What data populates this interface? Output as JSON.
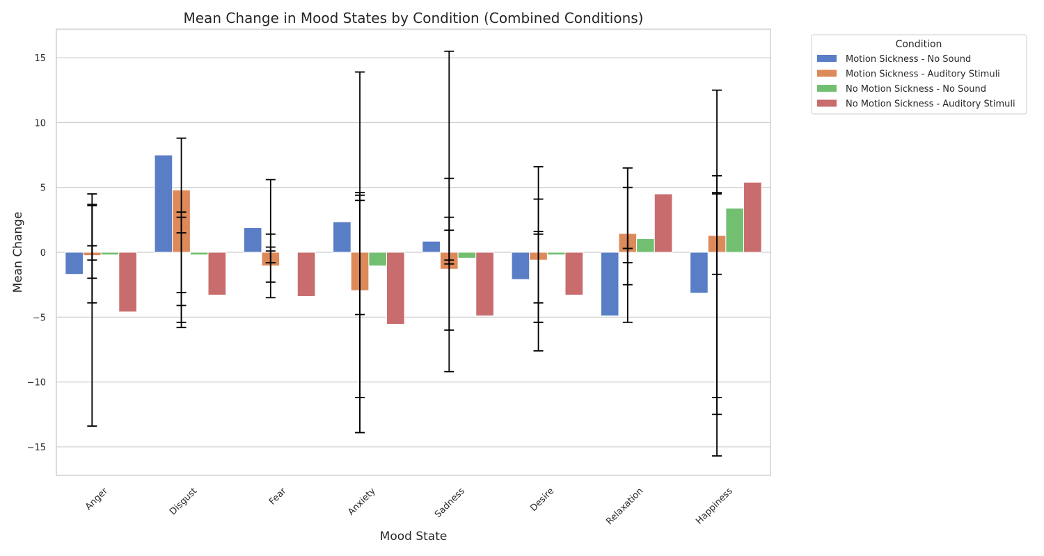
{
  "chart_data": {
    "type": "bar",
    "title": "Mean Change in Mood States by Condition (Combined Conditions)",
    "xlabel": "Mood State",
    "ylabel": "Mean Change",
    "ylim": [
      -17.2,
      17.2
    ],
    "yticks": [
      -15,
      -10,
      -5,
      0,
      5,
      10,
      15
    ],
    "grid": true,
    "legend": {
      "title": "Condition",
      "placement": "outside-top-right"
    },
    "categories": [
      "Anger",
      "Disgust",
      "Fear",
      "Anxiety",
      "Sadness",
      "Desire",
      "Relaxation",
      "Happiness"
    ],
    "series": [
      {
        "name": "Motion Sickness - No Sound",
        "color": "#5a7ec6",
        "values": [
          -1.7,
          7.5,
          1.9,
          2.35,
          0.85,
          -2.1,
          -4.9,
          -3.15
        ]
      },
      {
        "name": "Motion Sickness - Auditory Stimuli",
        "color": "#dd8a5b",
        "values": [
          -0.25,
          4.8,
          -1.05,
          -2.95,
          -1.3,
          -0.6,
          1.45,
          1.3
        ]
      },
      {
        "name": "No Motion Sickness - No Sound",
        "color": "#73bf72",
        "values": [
          -0.2,
          -0.2,
          0.0,
          -1.05,
          -0.45,
          -0.2,
          1.05,
          3.4
        ]
      },
      {
        "name": "No Motion Sickness - Auditory Stimuli",
        "color": "#c86c6d",
        "values": [
          -4.6,
          -3.3,
          -3.4,
          -5.55,
          -4.9,
          -3.3,
          4.5,
          5.4
        ]
      }
    ],
    "error_bars": [
      {
        "category": "Anger",
        "intervals": [
          [
            -3.9,
            0.5
          ],
          [
            -13.4,
            3.6
          ],
          [
            -0.6,
            3.7
          ],
          [
            -2.0,
            4.5
          ]
        ]
      },
      {
        "category": "Disgust",
        "intervals": [
          [
            1.5,
            8.8
          ],
          [
            -4.1,
            2.7
          ],
          [
            -5.4,
            3.1
          ],
          [
            -5.8,
            -3.1
          ]
        ]
      },
      {
        "category": "Fear",
        "intervals": [
          [
            -0.8,
            1.4
          ],
          [
            -3.5,
            0.4
          ],
          [
            -2.3,
            5.6
          ],
          [
            -0.8,
            0.1
          ]
        ]
      },
      {
        "category": "Anxiety",
        "intervals": [
          [
            -11.2,
            4.4
          ],
          [
            -13.9,
            4.6
          ],
          [
            -13.9,
            4.0
          ],
          [
            -4.8,
            13.9
          ]
        ]
      },
      {
        "category": "Sadness",
        "intervals": [
          [
            -9.2,
            1.7
          ],
          [
            -0.6,
            2.7
          ],
          [
            -6.0,
            15.5
          ],
          [
            -0.9,
            5.7
          ]
        ]
      },
      {
        "category": "Desire",
        "intervals": [
          [
            -5.4,
            4.1
          ],
          [
            -3.9,
            1.4
          ],
          [
            -7.6,
            1.6
          ],
          [
            -5.4,
            6.6
          ]
        ]
      },
      {
        "category": "Relaxation",
        "intervals": [
          [
            -5.4,
            0.3
          ],
          [
            -2.5,
            6.5
          ],
          [
            -0.8,
            5.0
          ],
          [
            0.3,
            6.5
          ]
        ]
      },
      {
        "category": "Happiness",
        "intervals": [
          [
            -12.5,
            5.9
          ],
          [
            -15.7,
            4.5
          ],
          [
            -11.2,
            12.5
          ],
          [
            -1.7,
            4.6
          ]
        ]
      }
    ]
  }
}
